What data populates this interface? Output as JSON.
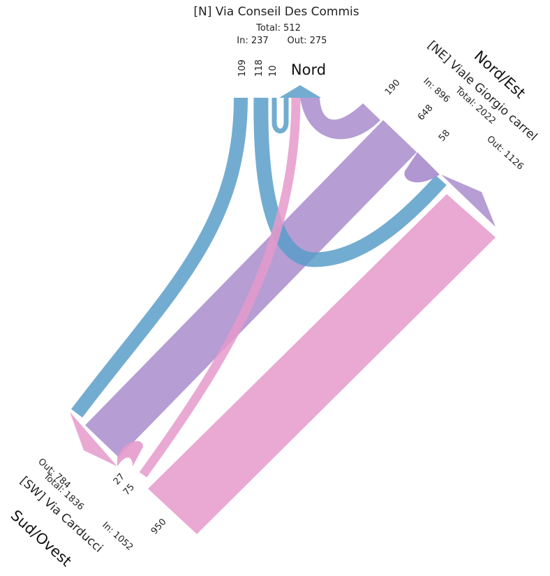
{
  "colors": {
    "north_flow": "#5b9ec9",
    "northeast_flow": "#a98ccc",
    "southwest_flow": "#e59acb"
  },
  "approaches": {
    "north": {
      "name": "[N] Via Conseil Des Commis",
      "direction": "Nord",
      "total": "Total: 512",
      "in": "In: 237",
      "out": "Out: 275",
      "counts": [
        "109",
        "118",
        "10"
      ]
    },
    "northeast": {
      "name": "[NE] Viale Giorgio carrel",
      "direction": "Nord/Est",
      "total": "Total: 2022",
      "in": "In: 896",
      "out": "Out: 1126",
      "counts": [
        "190",
        "648",
        "58"
      ]
    },
    "southwest": {
      "name": "[SW] Via Carducci",
      "direction": "Sud/Ovest",
      "total": "Total: 1836",
      "in": "In: 1052",
      "out": "Out: 784",
      "counts": [
        "27",
        "75",
        "950"
      ]
    }
  },
  "flows": [
    {
      "from": "N",
      "to": "SW",
      "value": 109
    },
    {
      "from": "N",
      "to": "NE",
      "value": 118
    },
    {
      "from": "N",
      "to": "N",
      "value": 10
    },
    {
      "from": "NE",
      "to": "N",
      "value": 190
    },
    {
      "from": "NE",
      "to": "SW",
      "value": 648
    },
    {
      "from": "NE",
      "to": "NE",
      "value": 58
    },
    {
      "from": "SW",
      "to": "SW",
      "value": 27
    },
    {
      "from": "SW",
      "to": "N",
      "value": 75
    },
    {
      "from": "SW",
      "to": "NE",
      "value": 950
    }
  ]
}
